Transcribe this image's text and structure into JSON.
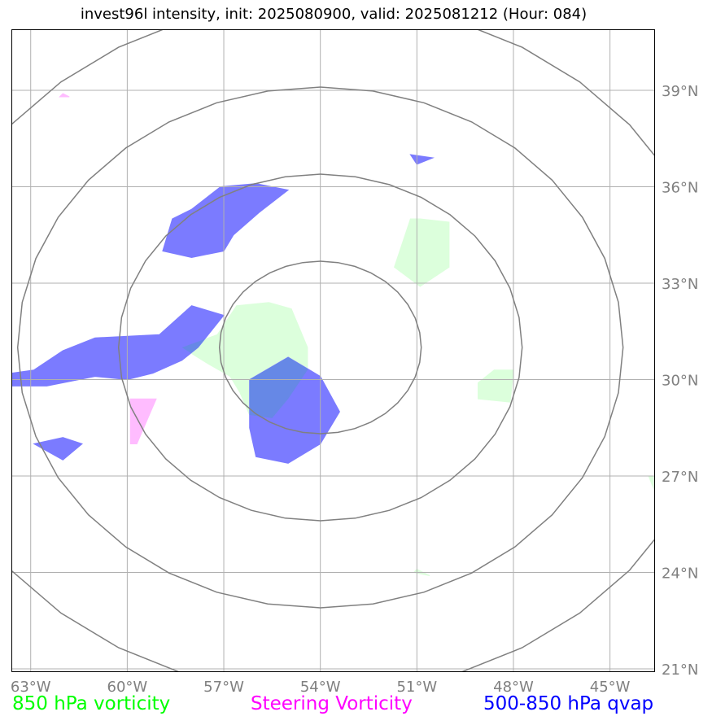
{
  "title": "invest96l intensity, init: 2025080900, valid: 2025081212 (Hour: 084)",
  "map": {
    "lon_range": [
      -63.6,
      -43.6
    ],
    "lat_range": [
      20.9,
      40.9
    ],
    "lon_ticks": [
      {
        "value": -63,
        "label": "63°W"
      },
      {
        "value": -60,
        "label": "60°W"
      },
      {
        "value": -57,
        "label": "57°W"
      },
      {
        "value": -54,
        "label": "54°W"
      },
      {
        "value": -51,
        "label": "51°W"
      },
      {
        "value": -48,
        "label": "48°W"
      },
      {
        "value": -45,
        "label": "45°W"
      }
    ],
    "lat_ticks": [
      {
        "value": 39,
        "label": "39°N"
      },
      {
        "value": 36,
        "label": "36°N"
      },
      {
        "value": 33,
        "label": "33°N"
      },
      {
        "value": 30,
        "label": "30°N"
      },
      {
        "value": 27,
        "label": "27°N"
      },
      {
        "value": 24,
        "label": "24°N"
      },
      {
        "value": 21,
        "label": "21°N"
      }
    ],
    "range_ring_center": {
      "lon": -54.0,
      "lat": 31.0
    },
    "gridline_color": "#b0b0b0",
    "ring_color": "#808080",
    "tick_label_color": "#808080"
  },
  "legend": {
    "vorticity": {
      "label": "850 hPa vorticity",
      "color": "#00ff00"
    },
    "steering": {
      "label": "Steering Vorticity",
      "color": "#ff00ff"
    },
    "qvap": {
      "label": "500-850 hPa qvap",
      "color": "#0000ff"
    }
  },
  "fields": {
    "vorticity_850": {
      "fill": "#dcffdc",
      "regions": [
        [
          [
            -57.2,
            31.4
          ],
          [
            -56.6,
            32.3
          ],
          [
            -55.6,
            32.4
          ],
          [
            -54.9,
            32.2
          ],
          [
            -54.4,
            31.0
          ],
          [
            -54.4,
            30.3
          ],
          [
            -55.0,
            29.4
          ],
          [
            -55.5,
            28.8
          ],
          [
            -56.2,
            28.9
          ],
          [
            -56.5,
            29.6
          ],
          [
            -56.8,
            30.1
          ],
          [
            -57.5,
            30.5
          ],
          [
            -58.3,
            31.0
          ]
        ],
        [
          [
            -51.7,
            33.5
          ],
          [
            -51.2,
            35.0
          ],
          [
            -50.9,
            35.0
          ],
          [
            -50.0,
            34.9
          ],
          [
            -50.0,
            33.5
          ],
          [
            -50.9,
            32.9
          ]
        ],
        [
          [
            -49.1,
            29.4
          ],
          [
            -49.1,
            29.9
          ],
          [
            -48.6,
            30.3
          ],
          [
            -48.0,
            30.3
          ],
          [
            -48.1,
            29.3
          ]
        ],
        [
          [
            -43.8,
            27.0
          ],
          [
            -43.6,
            27.0
          ],
          [
            -43.6,
            26.5
          ]
        ],
        [
          [
            -51.1,
            24.0
          ],
          [
            -51.0,
            24.1
          ],
          [
            -50.6,
            23.9
          ]
        ]
      ]
    },
    "steering_vorticity": {
      "fill": "#ffbcff",
      "regions": [
        [
          [
            -59.9,
            29.4
          ],
          [
            -59.1,
            29.4
          ],
          [
            -59.7,
            28.0
          ],
          [
            -59.9,
            28.0
          ]
        ],
        [
          [
            -62.1,
            38.8
          ],
          [
            -61.8,
            38.8
          ],
          [
            -62.0,
            38.9
          ]
        ]
      ]
    },
    "qvap_500_850": {
      "fill": "#7b7bff",
      "overlap_fill": "#6688e6",
      "regions": [
        [
          [
            -63.6,
            30.2
          ],
          [
            -62.9,
            30.3
          ],
          [
            -62.0,
            30.9
          ],
          [
            -61.0,
            31.3
          ],
          [
            -59.0,
            31.4
          ],
          [
            -58.0,
            32.3
          ],
          [
            -57.0,
            32.0
          ],
          [
            -57.8,
            31.0
          ],
          [
            -58.3,
            30.6
          ],
          [
            -59.2,
            30.2
          ],
          [
            -60.0,
            30.0
          ],
          [
            -61.0,
            30.1
          ],
          [
            -62.5,
            29.8
          ],
          [
            -63.6,
            29.8
          ]
        ],
        [
          [
            -58.9,
            34.0
          ],
          [
            -58.6,
            35.0
          ],
          [
            -58.0,
            35.3
          ],
          [
            -57.1,
            36.0
          ],
          [
            -56.0,
            36.1
          ],
          [
            -55.0,
            35.9
          ],
          [
            -55.9,
            35.2
          ],
          [
            -56.7,
            34.5
          ],
          [
            -57.0,
            34.0
          ],
          [
            -58.0,
            33.8
          ]
        ],
        [
          [
            -56.2,
            30.0
          ],
          [
            -55.0,
            30.7
          ],
          [
            -54.0,
            30.1
          ],
          [
            -53.4,
            29.0
          ],
          [
            -54.0,
            28.0
          ],
          [
            -55.0,
            27.4
          ],
          [
            -56.0,
            27.6
          ],
          [
            -56.2,
            28.5
          ]
        ],
        [
          [
            -62.9,
            28.0
          ],
          [
            -62.0,
            28.2
          ],
          [
            -61.4,
            28.0
          ],
          [
            -62.0,
            27.5
          ]
        ],
        [
          [
            -51.2,
            37.0
          ],
          [
            -50.5,
            36.9
          ],
          [
            -51.0,
            36.7
          ]
        ]
      ]
    }
  }
}
